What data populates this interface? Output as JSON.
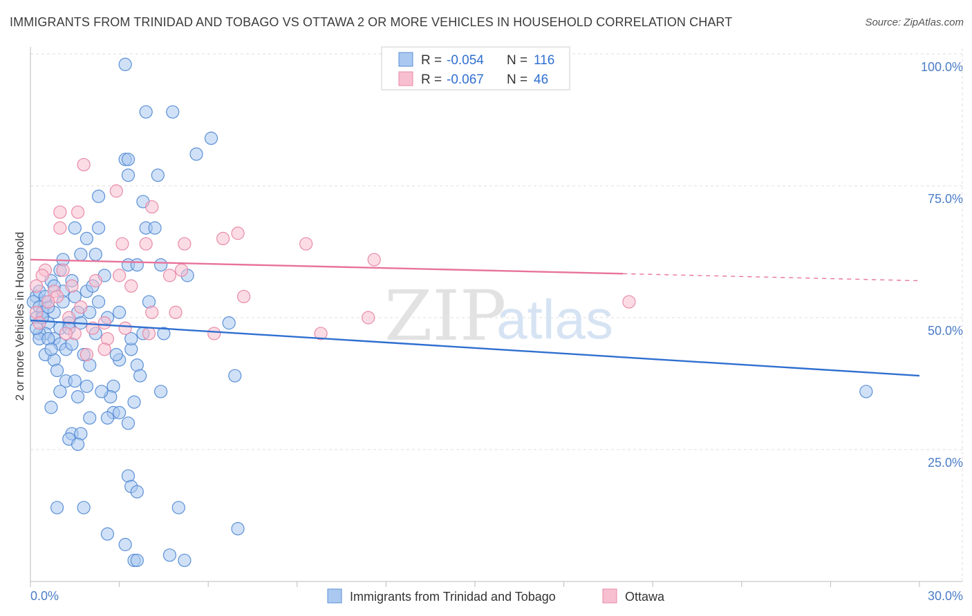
{
  "title": "IMMIGRANTS FROM TRINIDAD AND TOBAGO VS OTTAWA 2 OR MORE VEHICLES IN HOUSEHOLD CORRELATION CHART",
  "source": "Source: ZipAtlas.com",
  "watermark": {
    "zip": "ZIP",
    "atlas": "atlas"
  },
  "colors": {
    "blue_fill": "#aac8f0",
    "blue_stroke": "#5b8fd6",
    "blue_line": "#2f6fd0",
    "pink_fill": "#f7bfd0",
    "pink_stroke": "#e88aa8",
    "pink_line": "#e8739a",
    "axis_text": "#4a7cc7",
    "grid": "#dddddd"
  },
  "legend": {
    "rows": [
      {
        "r_label": "R =",
        "r_value": "-0.054",
        "n_label": "N =",
        "n_value": "116",
        "color": "blue"
      },
      {
        "r_label": "R =",
        "r_value": "-0.067",
        "n_label": "N =",
        "n_value": "46",
        "color": "pink"
      }
    ]
  },
  "chart_data": {
    "type": "scatter",
    "xlabel": "",
    "ylabel": "2 or more Vehicles in Household",
    "xlim": [
      0,
      30
    ],
    "ylim": [
      0,
      100
    ],
    "x_tick_labels": [
      "0.0%",
      "30.0%"
    ],
    "y_tick_labels": [
      "25.0%",
      "50.0%",
      "75.0%",
      "100.0%"
    ],
    "y_ticks": [
      25,
      50,
      75,
      100
    ],
    "grid": true,
    "series": [
      {
        "name": "Immigrants from Trinidad and Tobago",
        "color": "blue",
        "trend": {
          "x": [
            0,
            30
          ],
          "y": [
            49.5,
            39.0
          ],
          "solid_until": 30
        },
        "points": [
          [
            3.2,
            98
          ],
          [
            3.9,
            89
          ],
          [
            4.8,
            89
          ],
          [
            6.1,
            84
          ],
          [
            5.6,
            81
          ],
          [
            3.2,
            80
          ],
          [
            3.3,
            80
          ],
          [
            3.3,
            77
          ],
          [
            4.3,
            77
          ],
          [
            2.3,
            73
          ],
          [
            3.8,
            72
          ],
          [
            1.5,
            67
          ],
          [
            2.3,
            67
          ],
          [
            3.9,
            67
          ],
          [
            4.2,
            67
          ],
          [
            1.9,
            65
          ],
          [
            1.7,
            62
          ],
          [
            2.2,
            62
          ],
          [
            3.3,
            60
          ],
          [
            3.6,
            60
          ],
          [
            4.4,
            60
          ],
          [
            1.0,
            59
          ],
          [
            2.5,
            58
          ],
          [
            5.3,
            58
          ],
          [
            0.7,
            57
          ],
          [
            1.4,
            57
          ],
          [
            1.1,
            55
          ],
          [
            1.9,
            55
          ],
          [
            1.5,
            54
          ],
          [
            0.2,
            54
          ],
          [
            0.1,
            53
          ],
          [
            0.5,
            53
          ],
          [
            1.1,
            53
          ],
          [
            2.3,
            53
          ],
          [
            0.3,
            52
          ],
          [
            0.4,
            51
          ],
          [
            0.8,
            51
          ],
          [
            1.6,
            51
          ],
          [
            2.0,
            51
          ],
          [
            0.2,
            50
          ],
          [
            0.4,
            50
          ],
          [
            0.6,
            49
          ],
          [
            1.3,
            49
          ],
          [
            1.0,
            48
          ],
          [
            3.0,
            51
          ],
          [
            6.7,
            49
          ],
          [
            0.5,
            47
          ],
          [
            0.3,
            47
          ],
          [
            0.8,
            46
          ],
          [
            1.3,
            48
          ],
          [
            3.8,
            47
          ],
          [
            4.5,
            47
          ],
          [
            0.3,
            46
          ],
          [
            0.6,
            46
          ],
          [
            1.0,
            45
          ],
          [
            3.4,
            44
          ],
          [
            1.2,
            44
          ],
          [
            0.5,
            43
          ],
          [
            1.8,
            43
          ],
          [
            3.0,
            42
          ],
          [
            0.8,
            42
          ],
          [
            2.0,
            41
          ],
          [
            3.6,
            41
          ],
          [
            6.9,
            39
          ],
          [
            1.2,
            38
          ],
          [
            2.8,
            37
          ],
          [
            1.9,
            37
          ],
          [
            4.4,
            36
          ],
          [
            1.0,
            36
          ],
          [
            2.7,
            35
          ],
          [
            1.6,
            35
          ],
          [
            3.5,
            34
          ],
          [
            0.7,
            33
          ],
          [
            2.8,
            32
          ],
          [
            3.0,
            32
          ],
          [
            2.0,
            31
          ],
          [
            2.6,
            31
          ],
          [
            3.3,
            30
          ],
          [
            1.4,
            28
          ],
          [
            1.7,
            28
          ],
          [
            1.3,
            27
          ],
          [
            1.6,
            26
          ],
          [
            3.3,
            20
          ],
          [
            3.4,
            18
          ],
          [
            3.6,
            17
          ],
          [
            0.9,
            14
          ],
          [
            1.8,
            14
          ],
          [
            5.0,
            14
          ],
          [
            7.0,
            10
          ],
          [
            2.6,
            9
          ],
          [
            3.2,
            7
          ],
          [
            4.7,
            5
          ],
          [
            5.2,
            4
          ],
          [
            3.5,
            4
          ],
          [
            3.6,
            4
          ],
          [
            28.2,
            36
          ],
          [
            0.2,
            48
          ],
          [
            0.6,
            52
          ],
          [
            0.3,
            55
          ],
          [
            2.1,
            56
          ],
          [
            1.4,
            45
          ],
          [
            0.9,
            40
          ],
          [
            2.4,
            36
          ],
          [
            0.4,
            50
          ],
          [
            1.7,
            49
          ],
          [
            3.4,
            46
          ],
          [
            0.8,
            56
          ],
          [
            2.2,
            47
          ],
          [
            4.0,
            53
          ],
          [
            1.1,
            61
          ],
          [
            0.5,
            54
          ],
          [
            2.9,
            43
          ],
          [
            1.5,
            38
          ],
          [
            3.7,
            39
          ],
          [
            0.7,
            44
          ],
          [
            2.6,
            50
          ]
        ]
      },
      {
        "name": "Ottawa",
        "color": "pink",
        "trend": {
          "x": [
            0,
            30
          ],
          "y": [
            61.0,
            57.0
          ],
          "solid_until": 20
        },
        "points": [
          [
            1.8,
            79
          ],
          [
            2.9,
            74
          ],
          [
            4.1,
            71
          ],
          [
            1.0,
            70
          ],
          [
            1.6,
            70
          ],
          [
            1.0,
            67
          ],
          [
            3.1,
            64
          ],
          [
            3.9,
            64
          ],
          [
            5.2,
            64
          ],
          [
            6.5,
            65
          ],
          [
            7.0,
            66
          ],
          [
            9.3,
            64
          ],
          [
            11.6,
            61
          ],
          [
            0.5,
            59
          ],
          [
            1.1,
            59
          ],
          [
            3.0,
            58
          ],
          [
            4.7,
            58
          ],
          [
            5.1,
            59
          ],
          [
            2.2,
            57
          ],
          [
            1.4,
            56
          ],
          [
            0.8,
            55
          ],
          [
            0.2,
            56
          ],
          [
            0.9,
            54
          ],
          [
            3.4,
            56
          ],
          [
            7.2,
            54
          ],
          [
            4.1,
            51
          ],
          [
            4.9,
            51
          ],
          [
            0.2,
            51
          ],
          [
            1.3,
            50
          ],
          [
            2.5,
            49
          ],
          [
            1.5,
            47
          ],
          [
            1.2,
            47
          ],
          [
            3.2,
            48
          ],
          [
            9.8,
            47
          ],
          [
            11.4,
            50
          ],
          [
            6.2,
            47
          ],
          [
            2.6,
            46
          ],
          [
            4.0,
            47
          ],
          [
            2.5,
            44
          ],
          [
            1.9,
            43
          ],
          [
            0.4,
            58
          ],
          [
            0.3,
            49
          ],
          [
            0.6,
            53
          ],
          [
            20.2,
            53
          ],
          [
            1.7,
            52
          ],
          [
            2.1,
            48
          ]
        ]
      }
    ]
  },
  "bottom_legend": [
    {
      "label": "Immigrants from Trinidad and Tobago",
      "color": "blue"
    },
    {
      "label": "Ottawa",
      "color": "pink"
    }
  ]
}
